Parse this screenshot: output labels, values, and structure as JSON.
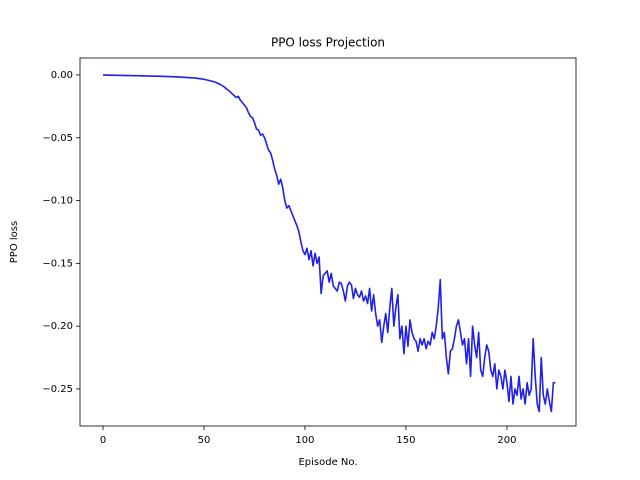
{
  "chart_data": {
    "type": "line",
    "title": "PPO loss Projection",
    "xlabel": "Episode No.",
    "ylabel": "PPO loss",
    "x": [
      0,
      1,
      2,
      3,
      4,
      5,
      6,
      7,
      8,
      9,
      10,
      11,
      12,
      13,
      14,
      15,
      16,
      17,
      18,
      19,
      20,
      21,
      22,
      23,
      24,
      25,
      26,
      27,
      28,
      29,
      30,
      31,
      32,
      33,
      34,
      35,
      36,
      37,
      38,
      39,
      40,
      41,
      42,
      43,
      44,
      45,
      46,
      47,
      48,
      49,
      50,
      51,
      52,
      53,
      54,
      55,
      56,
      57,
      58,
      59,
      60,
      61,
      62,
      63,
      64,
      65,
      66,
      67,
      68,
      69,
      70,
      71,
      72,
      73,
      74,
      75,
      76,
      77,
      78,
      79,
      80,
      81,
      82,
      83,
      84,
      85,
      86,
      87,
      88,
      89,
      90,
      91,
      92,
      93,
      94,
      95,
      96,
      97,
      98,
      99,
      100,
      101,
      102,
      103,
      104,
      105,
      106,
      107,
      108,
      109,
      110,
      111,
      112,
      113,
      114,
      115,
      116,
      117,
      118,
      119,
      120,
      121,
      122,
      123,
      124,
      125,
      126,
      127,
      128,
      129,
      130,
      131,
      132,
      133,
      134,
      135,
      136,
      137,
      138,
      139,
      140,
      141,
      142,
      143,
      144,
      145,
      146,
      147,
      148,
      149,
      150,
      151,
      152,
      153,
      154,
      155,
      156,
      157,
      158,
      159,
      160,
      161,
      162,
      163,
      164,
      165,
      166,
      167,
      168,
      169,
      170,
      171,
      172,
      173,
      174,
      175,
      176,
      177,
      178,
      179,
      180,
      181,
      182,
      183,
      184,
      185,
      186,
      187,
      188,
      189,
      190,
      191,
      192,
      193,
      194,
      195,
      196,
      197,
      198,
      199,
      200,
      201,
      202,
      203,
      204,
      205,
      206,
      207,
      208,
      209,
      210,
      211,
      212,
      213,
      214,
      215,
      216,
      217,
      218,
      219,
      220,
      221,
      222,
      223,
      224
    ],
    "series": [
      {
        "color": "#2020e8",
        "values": [
          0,
          -0.0001,
          -0.0001,
          -0.0002,
          -0.0002,
          -0.0002,
          -0.0003,
          -0.0003,
          -0.0003,
          -0.0004,
          -0.0004,
          -0.0004,
          -0.0005,
          -0.0005,
          -0.0005,
          -0.0006,
          -0.0006,
          -0.0006,
          -0.0007,
          -0.0007,
          -0.0008,
          -0.0008,
          -0.0008,
          -0.0009,
          -0.0009,
          -0.001,
          -0.001,
          -0.001,
          -0.0011,
          -0.0011,
          -0.0012,
          -0.0012,
          -0.0013,
          -0.0013,
          -0.0014,
          -0.0015,
          -0.0015,
          -0.0016,
          -0.0017,
          -0.0018,
          -0.0019,
          -0.002,
          -0.0021,
          -0.0022,
          -0.0023,
          -0.0024,
          -0.0026,
          -0.0028,
          -0.003,
          -0.0032,
          -0.0035,
          -0.0038,
          -0.0042,
          -0.0046,
          -0.005,
          -0.0055,
          -0.006,
          -0.0068,
          -0.0075,
          -0.0085,
          -0.0095,
          -0.011,
          -0.012,
          -0.0135,
          -0.015,
          -0.0165,
          -0.018,
          -0.017,
          -0.02,
          -0.022,
          -0.024,
          -0.026,
          -0.03,
          -0.033,
          -0.034,
          -0.038,
          -0.043,
          -0.044,
          -0.048,
          -0.047,
          -0.05,
          -0.055,
          -0.06,
          -0.062,
          -0.068,
          -0.075,
          -0.08,
          -0.087,
          -0.083,
          -0.09,
          -0.1,
          -0.106,
          -0.104,
          -0.108,
          -0.112,
          -0.116,
          -0.12,
          -0.125,
          -0.133,
          -0.14,
          -0.143,
          -0.138,
          -0.147,
          -0.14,
          -0.152,
          -0.142,
          -0.15,
          -0.145,
          -0.174,
          -0.16,
          -0.158,
          -0.156,
          -0.165,
          -0.158,
          -0.168,
          -0.17,
          -0.172,
          -0.165,
          -0.166,
          -0.172,
          -0.18,
          -0.168,
          -0.165,
          -0.167,
          -0.178,
          -0.17,
          -0.175,
          -0.177,
          -0.172,
          -0.18,
          -0.176,
          -0.182,
          -0.17,
          -0.188,
          -0.175,
          -0.19,
          -0.2,
          -0.195,
          -0.213,
          -0.2,
          -0.19,
          -0.205,
          -0.185,
          -0.17,
          -0.2,
          -0.185,
          -0.175,
          -0.21,
          -0.2,
          -0.222,
          -0.2,
          -0.216,
          -0.195,
          -0.205,
          -0.21,
          -0.212,
          -0.22,
          -0.21,
          -0.215,
          -0.21,
          -0.218,
          -0.212,
          -0.215,
          -0.205,
          -0.21,
          -0.2,
          -0.185,
          -0.163,
          -0.21,
          -0.205,
          -0.225,
          -0.238,
          -0.22,
          -0.218,
          -0.21,
          -0.2,
          -0.195,
          -0.205,
          -0.215,
          -0.21,
          -0.23,
          -0.21,
          -0.24,
          -0.2,
          -0.215,
          -0.225,
          -0.205,
          -0.235,
          -0.24,
          -0.225,
          -0.215,
          -0.22,
          -0.235,
          -0.24,
          -0.23,
          -0.25,
          -0.235,
          -0.24,
          -0.25,
          -0.235,
          -0.245,
          -0.26,
          -0.24,
          -0.262,
          -0.25,
          -0.255,
          -0.24,
          -0.258,
          -0.25,
          -0.262,
          -0.245,
          -0.255,
          -0.25,
          -0.21,
          -0.24,
          -0.262,
          -0.268,
          -0.225,
          -0.255,
          -0.262,
          -0.25,
          -0.26,
          -0.268,
          -0.245,
          -0.245
        ]
      }
    ],
    "xlim": [
      -11.4,
      234.2
    ],
    "ylim": [
      -0.2795,
      0.0135
    ],
    "xticks": [
      0,
      50,
      100,
      150,
      200
    ],
    "yticks": [
      {
        "value": 0,
        "label": "0.00"
      },
      {
        "value": -0.05,
        "label": "−0.05"
      },
      {
        "value": -0.1,
        "label": "−0.10"
      },
      {
        "value": -0.15,
        "label": "−0.15"
      },
      {
        "value": -0.2,
        "label": "−0.20"
      },
      {
        "value": -0.25,
        "label": "−0.25"
      }
    ]
  }
}
